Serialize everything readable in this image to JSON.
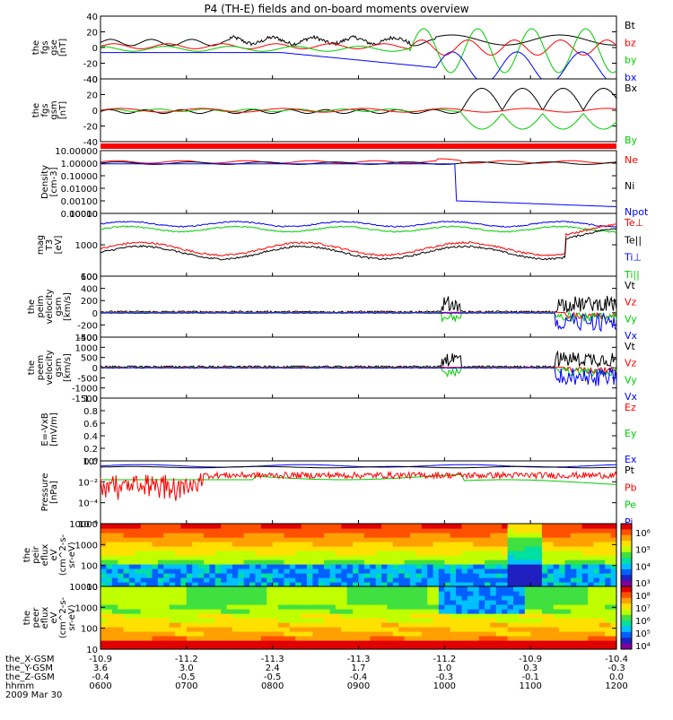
{
  "chart_data": {
    "type": "line",
    "title": "P4 (TH-E) fields and on-board moments overview",
    "date_label": "2009 Mar 30",
    "x_time_labels": [
      "0600",
      "0700",
      "0800",
      "0900",
      "1000",
      "1100",
      "1200"
    ],
    "ephemeris": [
      {
        "label": "the_X-GSM",
        "values": [
          "-10.9",
          "-11.2",
          "-11.3",
          "-11.3",
          "-11.2",
          "-10.9",
          "-10.4"
        ]
      },
      {
        "label": "the_Y-GSM",
        "values": [
          "3.6",
          "3.0",
          "2.4",
          "1.7",
          "1.0",
          "0.3",
          "-0.3"
        ]
      },
      {
        "label": "the_Z-GSM",
        "values": [
          "-0.4",
          "-0.5",
          "-0.5",
          "-0.4",
          "-0.3",
          "-0.1",
          "0.0"
        ]
      },
      {
        "label": "hhmm",
        "values": [
          "0600",
          "0700",
          "0800",
          "0900",
          "1000",
          "1100",
          "1200"
        ]
      }
    ],
    "colors": {
      "black": "#000000",
      "red": "#ff0000",
      "green": "#00cc00",
      "blue": "#0000ff"
    },
    "panels": [
      {
        "id": "fgs-gse",
        "ylabel": [
          "the",
          "fgs",
          "gse",
          "[nT]"
        ],
        "ylim": [
          -40,
          40
        ],
        "log": false,
        "yticks": [
          "40",
          "20",
          "0",
          "-20",
          "-40"
        ],
        "legend": [
          {
            "name": "Bt",
            "color": "black"
          },
          {
            "name": "bz",
            "color": "red"
          },
          {
            "name": "by",
            "color": "green"
          },
          {
            "name": "bx",
            "color": "blue"
          }
        ]
      },
      {
        "id": "fgs-gsm",
        "ylabel": [
          "the",
          "fgs",
          "gsm",
          "[nT]"
        ],
        "ylim": [
          -50,
          50
        ],
        "log": false,
        "yticks": [
          "40",
          "20",
          "0",
          "-20",
          "-40"
        ],
        "legend": [
          {
            "name": "Bx",
            "color": "black"
          },
          {
            "name": "By",
            "color": "green"
          }
        ]
      },
      {
        "id": "flag-bar",
        "ylabel": [],
        "legend": []
      },
      {
        "id": "density",
        "ylabel": [
          "Density",
          "[cm-3]"
        ],
        "ylim": [
          0.0001,
          10
        ],
        "log": true,
        "yticks": [
          "10.00000",
          "1.00000",
          "0.10000",
          "0.01000",
          "0.00100",
          "0.00010"
        ],
        "legend": [
          {
            "name": "Ne",
            "color": "red"
          },
          {
            "name": "Ni",
            "color": "black"
          },
          {
            "name": "Npot",
            "color": "blue"
          }
        ]
      },
      {
        "id": "temperature",
        "ylabel": [
          "mag",
          "T3",
          "[eV]"
        ],
        "ylim": [
          100,
          10000
        ],
        "log": true,
        "yticks": [
          "10000",
          "1000",
          "100"
        ],
        "legend": [
          {
            "name": "Te⊥",
            "color": "red"
          },
          {
            "name": "Te||",
            "color": "black"
          },
          {
            "name": "Ti⊥",
            "color": "blue"
          },
          {
            "name": "Ti||",
            "color": "green"
          }
        ]
      },
      {
        "id": "peim-velocity",
        "ylabel": [
          "the",
          "peim",
          "velocity",
          "gsm",
          "[km/s]"
        ],
        "ylim": [
          -400,
          600
        ],
        "log": false,
        "yticks": [
          "600",
          "400",
          "200",
          "0",
          "-200",
          "-400"
        ],
        "legend": [
          {
            "name": "Vt",
            "color": "black"
          },
          {
            "name": "Vz",
            "color": "red"
          },
          {
            "name": "Vy",
            "color": "green"
          },
          {
            "name": "Vx",
            "color": "blue"
          }
        ]
      },
      {
        "id": "peem-velocity",
        "ylabel": [
          "the",
          "peem",
          "velocity",
          "gsm",
          "[km/s]"
        ],
        "ylim": [
          -1500,
          1500
        ],
        "log": false,
        "yticks": [
          "1500",
          "1000",
          "500",
          "0",
          "-500",
          "-1000",
          "-1500"
        ],
        "legend": [
          {
            "name": "Vt",
            "color": "black"
          },
          {
            "name": "Vz",
            "color": "red"
          },
          {
            "name": "Vy",
            "color": "green"
          },
          {
            "name": "Vx",
            "color": "blue"
          }
        ]
      },
      {
        "id": "efield",
        "ylabel": [
          "E=-VxB",
          "[mV/m]"
        ],
        "ylim": [
          0,
          1
        ],
        "log": false,
        "yticks": [
          "1.0",
          "0.8",
          "0.6",
          "0.4",
          "0.2",
          "0.0"
        ],
        "legend": [
          {
            "name": "Ez",
            "color": "red"
          },
          {
            "name": "Ey",
            "color": "green"
          },
          {
            "name": "Ex",
            "color": "blue"
          }
        ]
      },
      {
        "id": "pressure",
        "ylabel": [
          "Pressure",
          "[nPa]"
        ],
        "ylim": [
          1e-06,
          1
        ],
        "log": true,
        "yticks": [
          "10⁰",
          "10⁻²",
          "10⁻⁴",
          "10⁻⁶"
        ],
        "legend": [
          {
            "name": "Pt",
            "color": "black"
          },
          {
            "name": "Pb",
            "color": "red"
          },
          {
            "name": "Pe",
            "color": "green"
          },
          {
            "name": "Pi",
            "color": "blue"
          }
        ]
      },
      {
        "id": "peir-eflux",
        "ylabel": [
          "the",
          "peir",
          "eflux",
          "eV",
          "(cm^2-s-",
          "sr-eV)"
        ],
        "ylim": [
          8,
          20000
        ],
        "log": true,
        "yticks": [
          "10000",
          "1000",
          "100",
          "10"
        ],
        "colorbar": [
          "10⁶",
          "10⁵",
          "10⁴",
          "10³"
        ]
      },
      {
        "id": "peer-eflux",
        "ylabel": [
          "the",
          "peer",
          "eflux",
          "eV",
          "(cm^2-s-",
          "sr-eV)"
        ],
        "ylim": [
          8,
          20000
        ],
        "log": true,
        "yticks": [
          "10000",
          "1000",
          "100",
          "10"
        ],
        "colorbar": [
          "10⁸",
          "10⁷",
          "10⁶",
          "10⁵",
          "10⁴"
        ]
      }
    ]
  }
}
